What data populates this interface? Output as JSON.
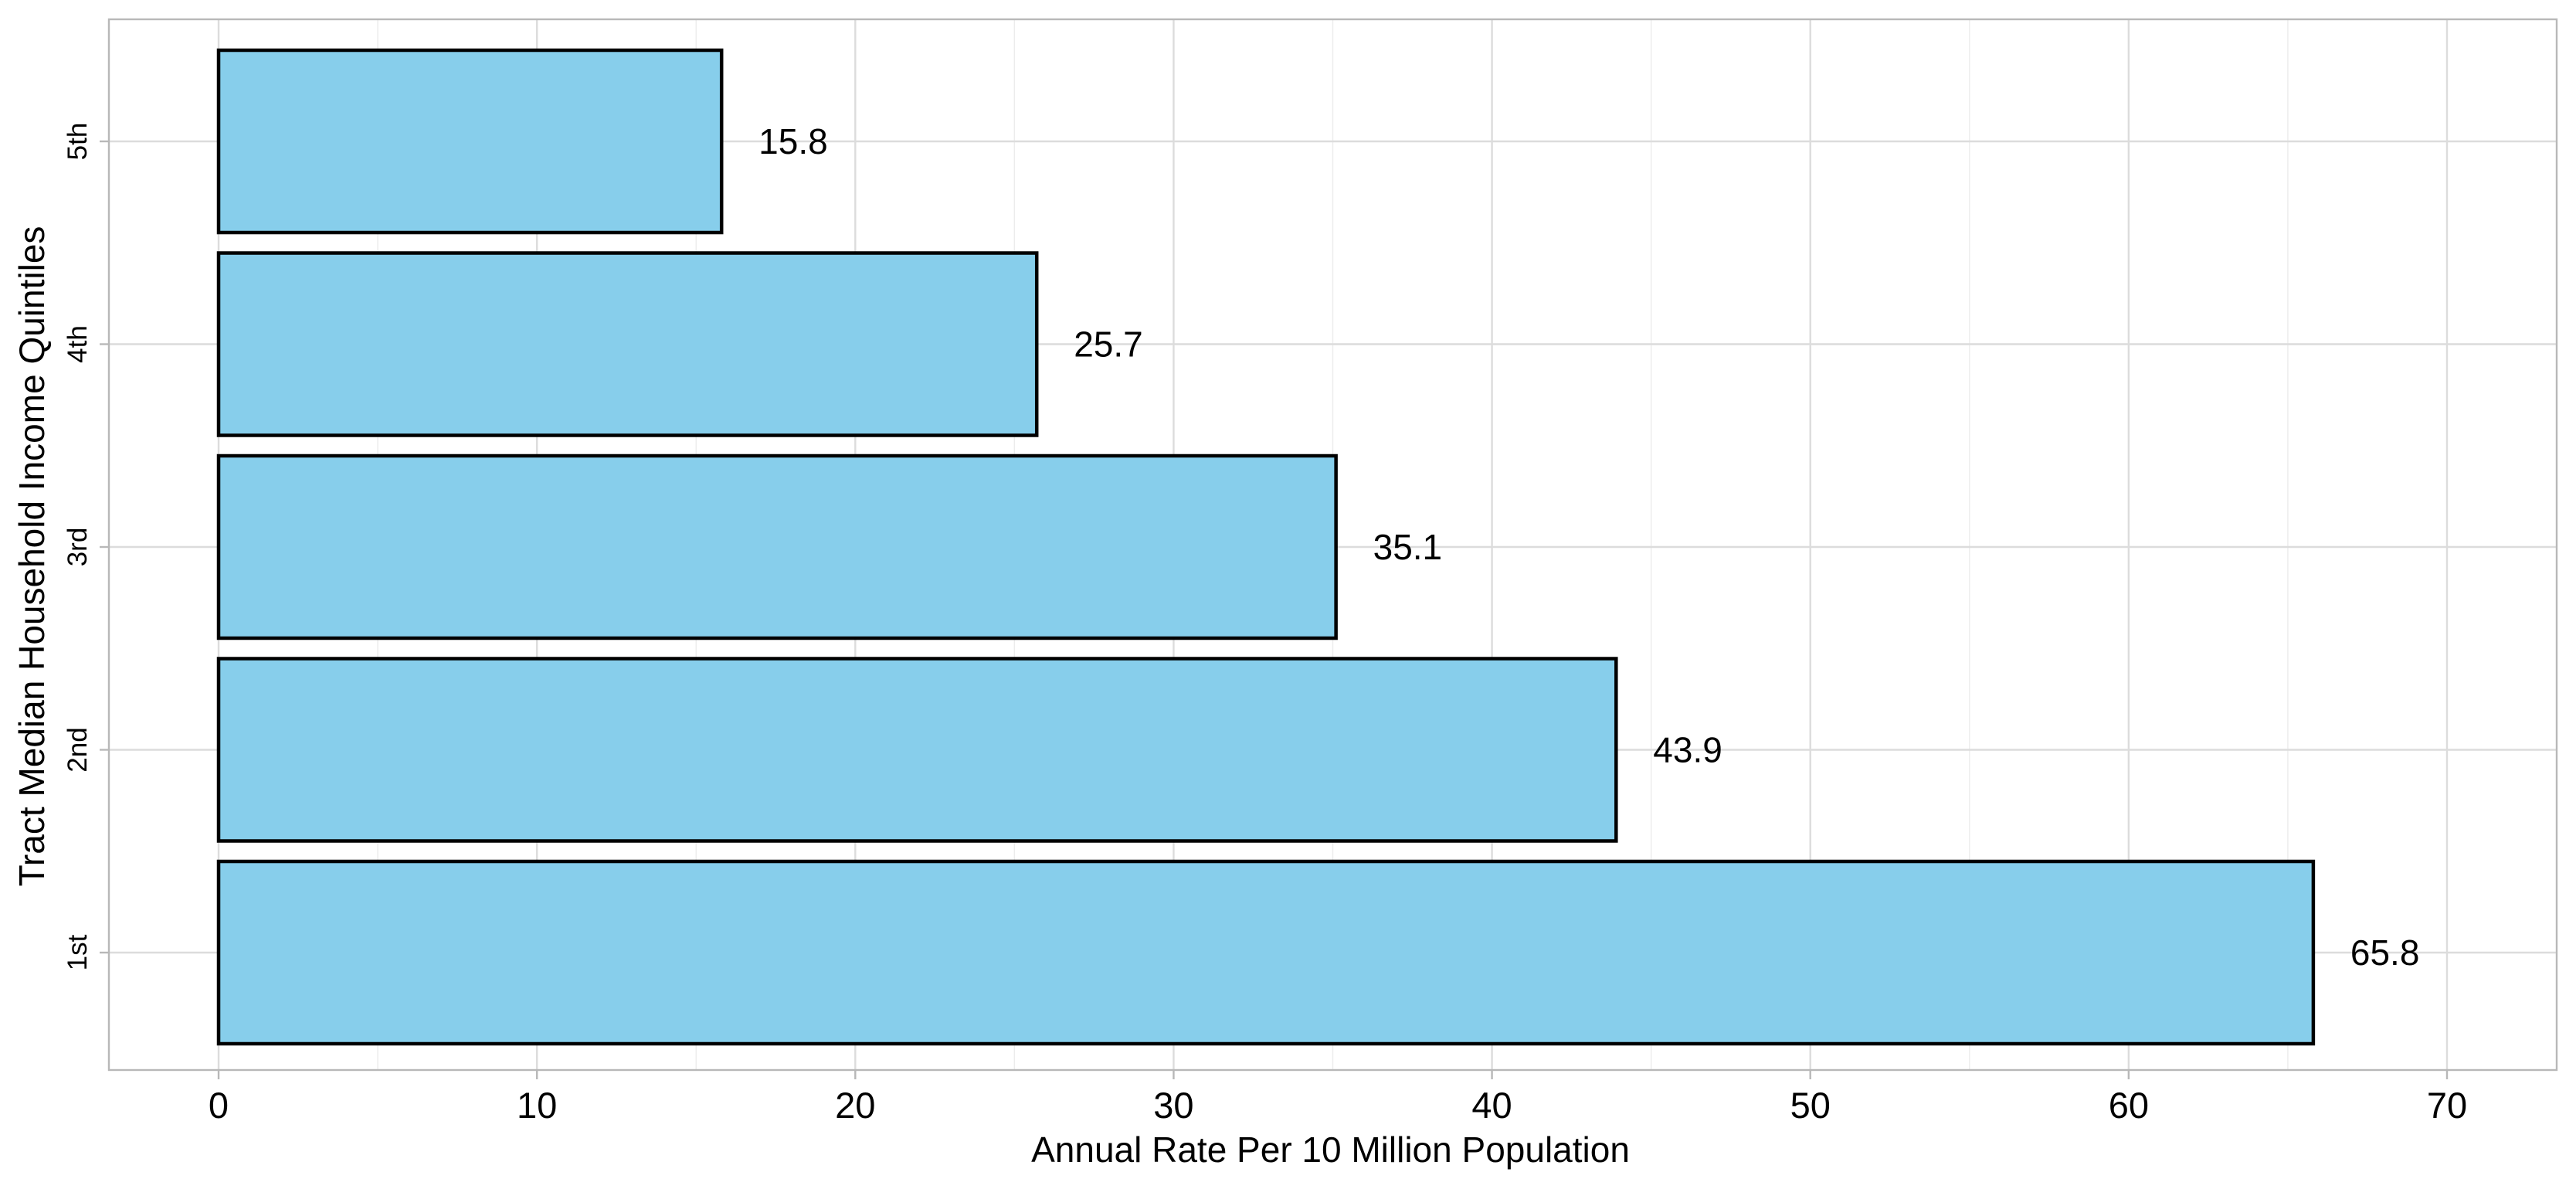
{
  "chart_data": {
    "type": "bar",
    "orientation": "horizontal",
    "categories": [
      "1st",
      "2nd",
      "3rd",
      "4th",
      "5th"
    ],
    "values": [
      65.8,
      43.9,
      35.1,
      25.7,
      15.8
    ],
    "data_labels": [
      "65.8",
      "43.9",
      "35.1",
      "25.7",
      "15.8"
    ],
    "title": "",
    "xlabel": "Annual Rate Per 10 Million Population",
    "ylabel": "Tract Median Household Income Quintiles",
    "xlim": [
      0,
      70
    ],
    "x_ticks": [
      0,
      10,
      20,
      30,
      40,
      50,
      60,
      70
    ],
    "x_tick_labels": [
      "0",
      "10",
      "20",
      "30",
      "40",
      "50",
      "60",
      "70"
    ],
    "grid": true,
    "legend": "none",
    "colors": {
      "bar_fill": "#87CEEB",
      "bar_outline": "#000000",
      "grid": "#dcdcdc",
      "panel_border": "#b8b8b8"
    }
  }
}
